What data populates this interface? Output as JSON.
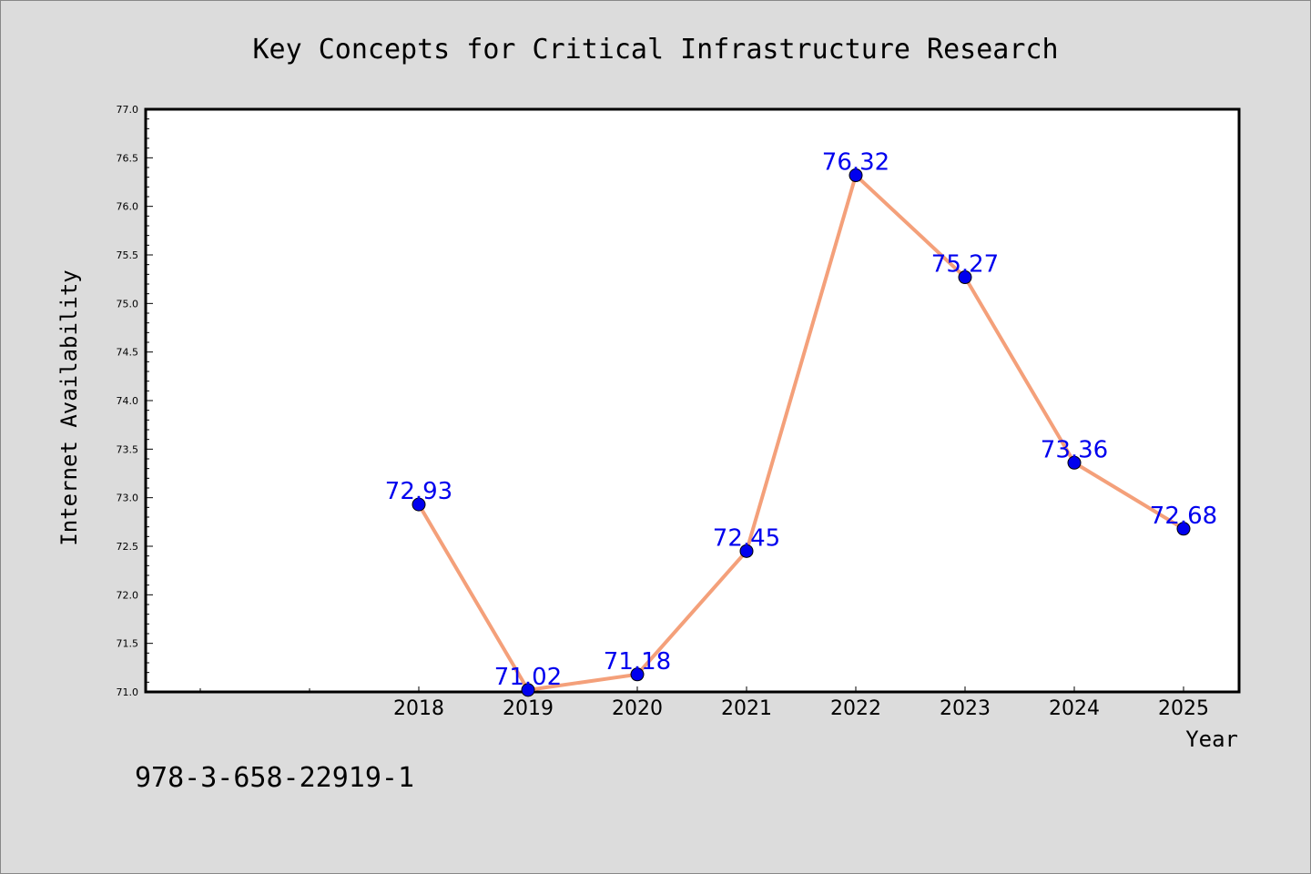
{
  "chart_data": {
    "type": "line",
    "title": "Key Concepts for Critical Infrastructure Research",
    "xlabel": "Year",
    "ylabel": "Internet Availability",
    "categories": [
      "2018",
      "2019",
      "2020",
      "2021",
      "2022",
      "2023",
      "2024",
      "2025"
    ],
    "series": [
      {
        "values": [
          72.93,
          71.02,
          71.18,
          72.45,
          76.32,
          75.27,
          73.36,
          72.68
        ],
        "labels": [
          "72.93",
          "71.02",
          "71.18",
          "72.45",
          "76.32",
          "75.27",
          "73.36",
          "72.68"
        ]
      }
    ],
    "ylim": [
      71.0,
      77.0
    ],
    "yticks": [
      "71.0",
      "71.5",
      "72.0",
      "72.5",
      "73.0",
      "73.5",
      "74.0",
      "74.5",
      "75.0",
      "75.5",
      "76.0",
      "76.5",
      "77.0"
    ],
    "grid": false,
    "legend": "none",
    "colors": {
      "line": "#f4a07a",
      "marker": "#0000ee",
      "label": "#0000ee",
      "background": "#dcdcdc",
      "plot_background": "#ffffff"
    }
  },
  "footer": {
    "isbn": "978-3-658-22919-1"
  }
}
